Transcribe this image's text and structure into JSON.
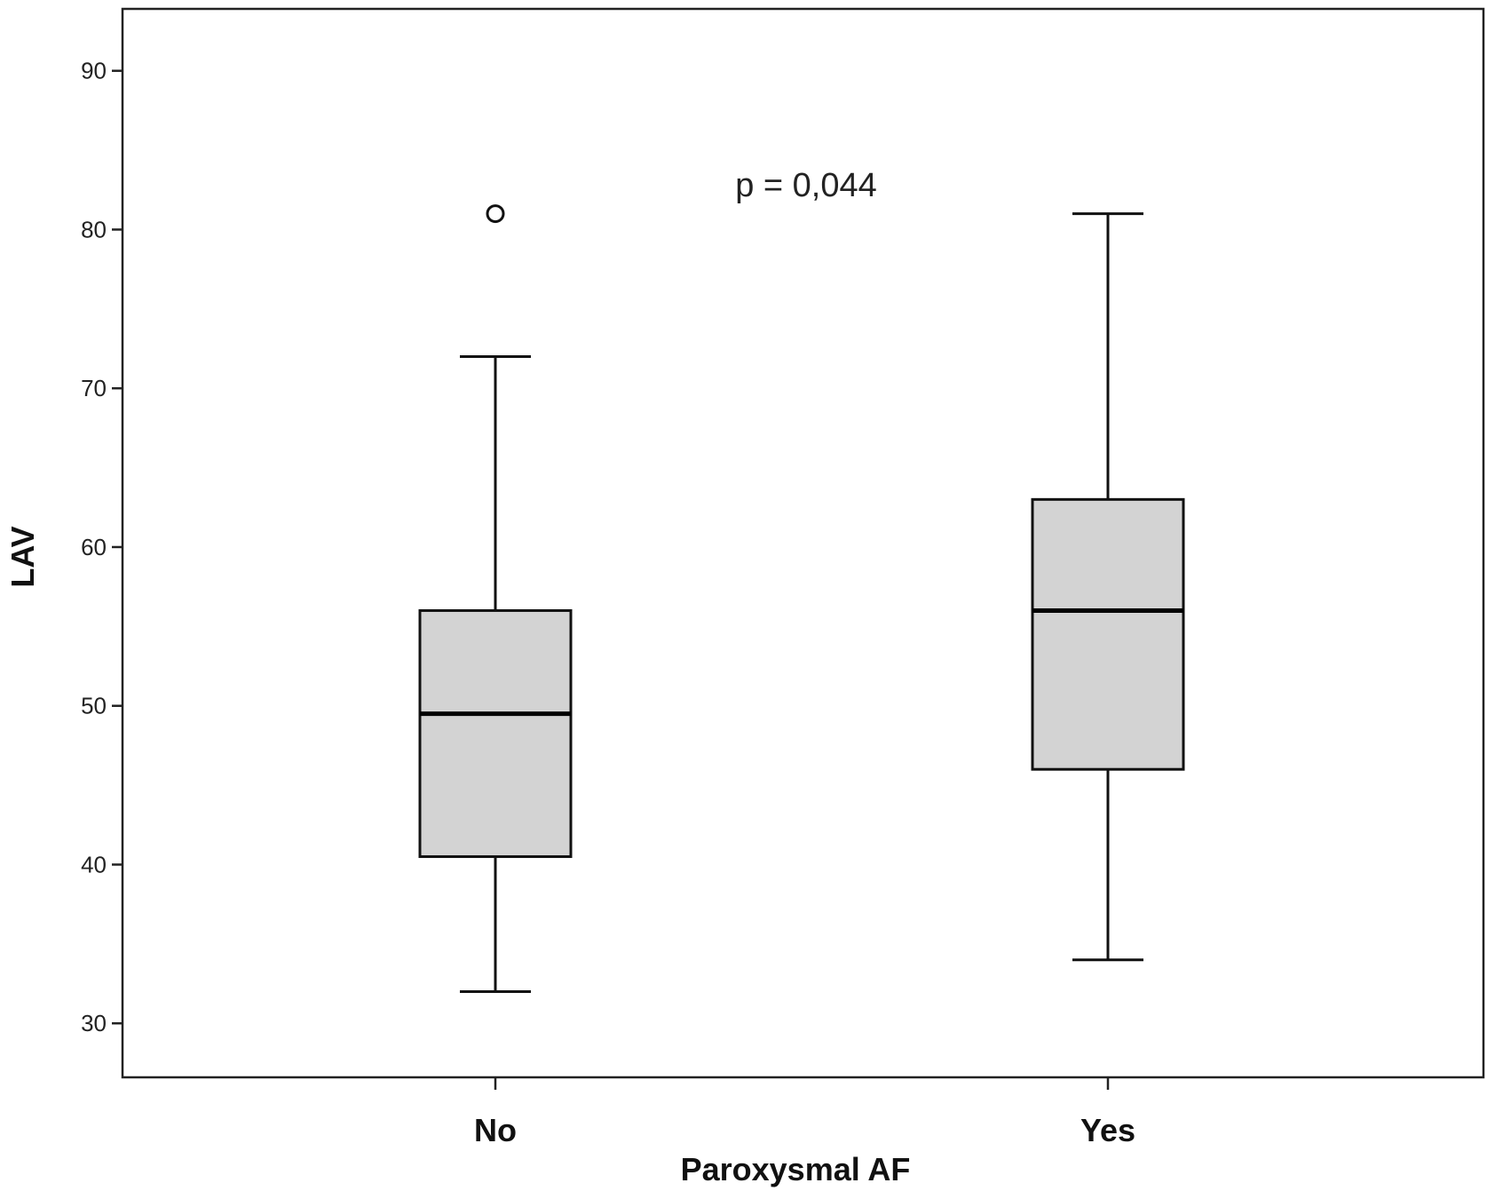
{
  "chart_data": {
    "type": "box",
    "title": "",
    "xlabel": "Paroxysmal AF",
    "ylabel": "LAV",
    "ylim": [
      26.6,
      93.9
    ],
    "yticks": [
      30,
      40,
      50,
      60,
      70,
      80,
      90
    ],
    "ytick_labels": [
      "30",
      "40",
      "50",
      "60",
      "70",
      "80",
      "90"
    ],
    "categories": [
      "No",
      "Yes"
    ],
    "boxes": [
      {
        "category": "No",
        "whisker_low": 32,
        "q1": 40.5,
        "median": 49.5,
        "q3": 56,
        "whisker_high": 72,
        "outliers": [
          81
        ]
      },
      {
        "category": "Yes",
        "whisker_low": 34,
        "q1": 46,
        "median": 56,
        "q3": 63,
        "whisker_high": 81,
        "outliers": []
      }
    ],
    "annotation": "p = 0,044",
    "grid": false,
    "box_color": "#d3d3d3"
  }
}
